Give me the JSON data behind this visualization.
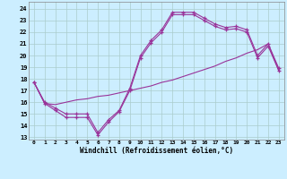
{
  "xlabel": "Windchill (Refroidissement éolien,°C)",
  "x_ticks": [
    0,
    1,
    2,
    3,
    4,
    5,
    6,
    7,
    8,
    9,
    10,
    11,
    12,
    13,
    14,
    15,
    16,
    17,
    18,
    19,
    20,
    21,
    22,
    23
  ],
  "ylim": [
    12.8,
    24.6
  ],
  "yticks": [
    13,
    14,
    15,
    16,
    17,
    18,
    19,
    20,
    21,
    22,
    23,
    24
  ],
  "xlim": [
    -0.5,
    23.5
  ],
  "bg_color": "#cceeff",
  "grid_color": "#aacccc",
  "line_color": "#993399",
  "line1_x": [
    0,
    1,
    2,
    3,
    4,
    5,
    6,
    7,
    8,
    9,
    10,
    11,
    12,
    13,
    14,
    15,
    16,
    17,
    18,
    19,
    20,
    21,
    22,
    23
  ],
  "line1_y": [
    17.7,
    15.9,
    15.3,
    14.7,
    14.7,
    14.7,
    13.2,
    14.3,
    15.2,
    17.0,
    19.8,
    21.1,
    22.0,
    23.5,
    23.5,
    23.5,
    23.0,
    22.5,
    22.2,
    22.3,
    22.0,
    19.8,
    20.8,
    18.7
  ],
  "line2_x": [
    0,
    1,
    2,
    3,
    4,
    5,
    6,
    7,
    8,
    9,
    10,
    11,
    12,
    13,
    14,
    15,
    16,
    17,
    18,
    19,
    20,
    21,
    22,
    23
  ],
  "line2_y": [
    17.7,
    16.0,
    15.5,
    15.0,
    15.0,
    15.0,
    13.4,
    14.5,
    15.3,
    17.2,
    20.0,
    21.3,
    22.2,
    23.7,
    23.7,
    23.7,
    23.2,
    22.7,
    22.4,
    22.5,
    22.2,
    20.0,
    21.0,
    18.9
  ],
  "line3_x": [
    0,
    1,
    2,
    3,
    4,
    5,
    6,
    7,
    8,
    9,
    10,
    11,
    12,
    13,
    14,
    15,
    16,
    17,
    18,
    19,
    20,
    21,
    22,
    23
  ],
  "line3_y": [
    17.7,
    15.9,
    15.8,
    16.0,
    16.2,
    16.3,
    16.5,
    16.6,
    16.8,
    17.0,
    17.2,
    17.4,
    17.7,
    17.9,
    18.2,
    18.5,
    18.8,
    19.1,
    19.5,
    19.8,
    20.2,
    20.5,
    21.0,
    18.7
  ]
}
